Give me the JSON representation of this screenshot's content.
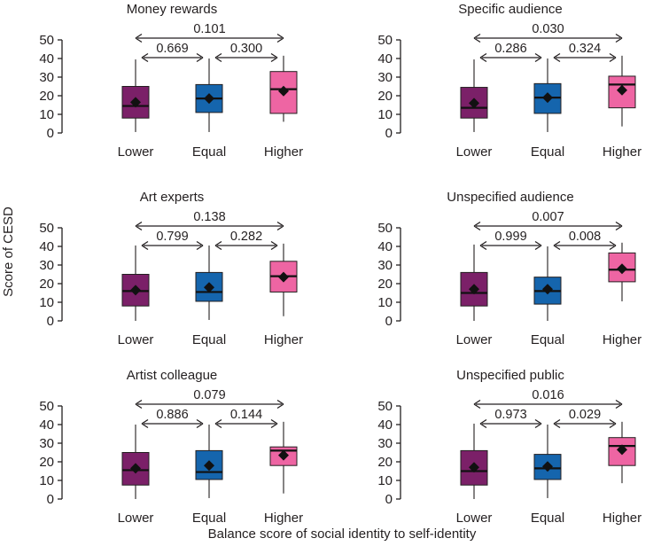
{
  "figure": {
    "ylabel": "Score of CESD",
    "xlabel": "Balance score of social identity to self-identity"
  },
  "chart_data": [
    {
      "type": "box",
      "title": "Money rewards",
      "categories": [
        "Lower",
        "Equal",
        "Higher"
      ],
      "ylim": [
        0,
        50
      ],
      "yticks": [
        0,
        10,
        20,
        30,
        40,
        50
      ],
      "colors": [
        "#7b2068",
        "#1565ad",
        "#ee65a3"
      ],
      "boxes": [
        {
          "min": 0.5,
          "q1": 8,
          "median": 14.5,
          "q3": 25,
          "max": 39.5,
          "mean": 16.5
        },
        {
          "min": 0.5,
          "q1": 11,
          "median": 18.5,
          "q3": 26,
          "max": 40,
          "mean": 18.5
        },
        {
          "min": 6,
          "q1": 10.5,
          "median": 23.5,
          "q3": 33,
          "max": 41.5,
          "mean": 22.5
        }
      ],
      "comparisons": [
        {
          "from": 0,
          "to": 2,
          "p": "0.101"
        },
        {
          "from": 0,
          "to": 1,
          "p": "0.669"
        },
        {
          "from": 1,
          "to": 2,
          "p": "0.300"
        }
      ]
    },
    {
      "type": "box",
      "title": "Specific audience",
      "categories": [
        "Lower",
        "Equal",
        "Higher"
      ],
      "ylim": [
        0,
        50
      ],
      "yticks": [
        0,
        10,
        20,
        30,
        40,
        50
      ],
      "colors": [
        "#7b2068",
        "#1565ad",
        "#ee65a3"
      ],
      "boxes": [
        {
          "min": 0.5,
          "q1": 8,
          "median": 13.5,
          "q3": 24.5,
          "max": 39.5,
          "mean": 16
        },
        {
          "min": 0.5,
          "q1": 10.5,
          "median": 19,
          "q3": 26.5,
          "max": 40,
          "mean": 19
        },
        {
          "min": 3.5,
          "q1": 13.5,
          "median": 26,
          "q3": 30.5,
          "max": 41.5,
          "mean": 23
        }
      ],
      "comparisons": [
        {
          "from": 0,
          "to": 2,
          "p": "0.030"
        },
        {
          "from": 0,
          "to": 1,
          "p": "0.286"
        },
        {
          "from": 1,
          "to": 2,
          "p": "0.324"
        }
      ]
    },
    {
      "type": "box",
      "title": "Art experts",
      "categories": [
        "Lower",
        "Equal",
        "Higher"
      ],
      "ylim": [
        0,
        50
      ],
      "yticks": [
        0,
        10,
        20,
        30,
        40,
        50
      ],
      "colors": [
        "#7b2068",
        "#1565ad",
        "#ee65a3"
      ],
      "boxes": [
        {
          "min": 0,
          "q1": 8,
          "median": 16,
          "q3": 25,
          "max": 40.5,
          "mean": 16.5
        },
        {
          "min": 0.5,
          "q1": 10.5,
          "median": 15.5,
          "q3": 26,
          "max": 40.5,
          "mean": 18
        },
        {
          "min": 2.5,
          "q1": 15.5,
          "median": 24,
          "q3": 32,
          "max": 41.5,
          "mean": 23.5
        }
      ],
      "comparisons": [
        {
          "from": 0,
          "to": 2,
          "p": "0.138"
        },
        {
          "from": 0,
          "to": 1,
          "p": "0.799"
        },
        {
          "from": 1,
          "to": 2,
          "p": "0.282"
        }
      ]
    },
    {
      "type": "box",
      "title": "Unspecified audience",
      "categories": [
        "Lower",
        "Equal",
        "Higher"
      ],
      "ylim": [
        0,
        50
      ],
      "yticks": [
        0,
        10,
        20,
        30,
        40,
        50
      ],
      "colors": [
        "#7b2068",
        "#1565ad",
        "#ee65a3"
      ],
      "boxes": [
        {
          "min": 0,
          "q1": 8,
          "median": 15,
          "q3": 26,
          "max": 41,
          "mean": 17
        },
        {
          "min": 0,
          "q1": 9,
          "median": 16,
          "q3": 23.5,
          "max": 40,
          "mean": 17
        },
        {
          "min": 10.5,
          "q1": 21,
          "median": 27.5,
          "q3": 36.5,
          "max": 42,
          "mean": 28
        }
      ],
      "comparisons": [
        {
          "from": 0,
          "to": 2,
          "p": "0.007"
        },
        {
          "from": 0,
          "to": 1,
          "p": "0.999"
        },
        {
          "from": 1,
          "to": 2,
          "p": "0.008"
        }
      ]
    },
    {
      "type": "box",
      "title": "Artist colleague",
      "categories": [
        "Lower",
        "Equal",
        "Higher"
      ],
      "ylim": [
        0,
        50
      ],
      "yticks": [
        0,
        10,
        20,
        30,
        40,
        50
      ],
      "colors": [
        "#7b2068",
        "#1565ad",
        "#ee65a3"
      ],
      "boxes": [
        {
          "min": 0,
          "q1": 7.5,
          "median": 15.5,
          "q3": 25,
          "max": 40,
          "mean": 16.5
        },
        {
          "min": 0.5,
          "q1": 10.5,
          "median": 14.5,
          "q3": 26,
          "max": 40,
          "mean": 18
        },
        {
          "min": 3,
          "q1": 18,
          "median": 26,
          "q3": 28,
          "max": 41.5,
          "mean": 23.5
        }
      ],
      "comparisons": [
        {
          "from": 0,
          "to": 2,
          "p": "0.079"
        },
        {
          "from": 0,
          "to": 1,
          "p": "0.886"
        },
        {
          "from": 1,
          "to": 2,
          "p": "0.144"
        }
      ]
    },
    {
      "type": "box",
      "title": "Unspecified public",
      "categories": [
        "Lower",
        "Equal",
        "Higher"
      ],
      "ylim": [
        0,
        50
      ],
      "yticks": [
        0,
        10,
        20,
        30,
        40,
        50
      ],
      "colors": [
        "#7b2068",
        "#1565ad",
        "#ee65a3"
      ],
      "boxes": [
        {
          "min": 0,
          "q1": 7.5,
          "median": 15,
          "q3": 26,
          "max": 40.5,
          "mean": 17
        },
        {
          "min": 0.5,
          "q1": 10.5,
          "median": 16.5,
          "q3": 24,
          "max": 40,
          "mean": 17.5
        },
        {
          "min": 8.5,
          "q1": 18,
          "median": 28.5,
          "q3": 33,
          "max": 41.5,
          "mean": 26.5
        }
      ],
      "comparisons": [
        {
          "from": 0,
          "to": 2,
          "p": "0.016"
        },
        {
          "from": 0,
          "to": 1,
          "p": "0.973"
        },
        {
          "from": 1,
          "to": 2,
          "p": "0.029"
        }
      ]
    }
  ]
}
